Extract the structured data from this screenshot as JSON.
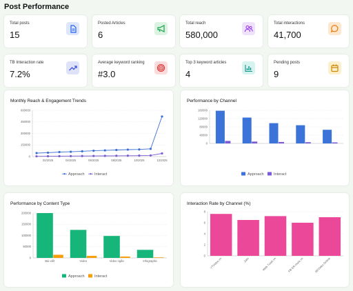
{
  "page_title": "Post Performance",
  "stats": [
    {
      "label": "Total posts",
      "value": "15",
      "icon": "document-icon",
      "color": "#2563eb",
      "bg": "#dde6fb"
    },
    {
      "label": "Posted Articles",
      "value": "6",
      "icon": "megaphone-icon",
      "color": "#16a34a",
      "bg": "#dcf3e3"
    },
    {
      "label": "Total reach",
      "value": "580,000",
      "icon": "users-icon",
      "color": "#9333ea",
      "bg": "#efe1fb"
    },
    {
      "label": "Total interactions",
      "value": "41,700",
      "icon": "chat-bubble-icon",
      "color": "#ea7a0c",
      "bg": "#fde7cf"
    },
    {
      "label": "TB Interaction rate",
      "value": "7.2%",
      "icon": "trend-up-icon",
      "color": "#3f51d8",
      "bg": "#dfe3fa"
    },
    {
      "label": "Average keyword ranking",
      "value": "#3.0",
      "icon": "target-icon",
      "color": "#dc2626",
      "bg": "#fbdcdc"
    },
    {
      "label": "Top 3 keyword articles",
      "value": "4",
      "icon": "bar-chart-icon",
      "color": "#0d9488",
      "bg": "#d6f3ef"
    },
    {
      "label": "Pending posts",
      "value": "9",
      "icon": "calendar-icon",
      "color": "#ca8a04",
      "bg": "#fbefcc"
    }
  ],
  "charts": {
    "reach": {
      "title": "Monthly Reach & Engagement Trends",
      "type": "line",
      "y_ticks": [
        "600000",
        "450000",
        "300000",
        "150000",
        "0"
      ],
      "ylim": [
        0,
        600000
      ],
      "x_labels": [
        "02/2025",
        "04/2025",
        "06/2025",
        "08/2025",
        "10/2025",
        "12/2025"
      ],
      "series": [
        {
          "name": "Approach",
          "color": "#3b6fd6",
          "values": [
            45000,
            50000,
            58000,
            62000,
            68000,
            75000,
            80000,
            85000,
            90000,
            92000,
            100000,
            520000
          ]
        },
        {
          "name": "Interact",
          "color": "#7c5bd6",
          "values": [
            3000,
            4000,
            5000,
            6000,
            7000,
            8000,
            9000,
            10000,
            11000,
            12000,
            14000,
            40000
          ]
        }
      ]
    },
    "channel": {
      "title": "Performance by Channel",
      "type": "bar",
      "y_ticks": [
        "160000",
        "120000",
        "80000",
        "40000",
        "0"
      ],
      "ylim": [
        0,
        160000
      ],
      "series": [
        {
          "name": "Approach",
          "color": "#3b73d9",
          "values": [
            158000,
            125000,
            98000,
            88000,
            66000
          ]
        },
        {
          "name": "Interact",
          "color": "#7c5bd6",
          "values": [
            12000,
            9000,
            7000,
            6000,
            5000
          ]
        }
      ]
    },
    "content": {
      "title": "Performance by Content Type",
      "type": "bar",
      "categories": [
        "Bài viết",
        "Video",
        "Video ngắn",
        "Infographic"
      ],
      "y_ticks": [
        "200000",
        "150000",
        "100000",
        "50000",
        "0"
      ],
      "ylim": [
        0,
        200000
      ],
      "series": [
        {
          "name": "Approach",
          "color": "#16b57a",
          "values": [
            200000,
            125000,
            98000,
            36000
          ]
        },
        {
          "name": "Interact",
          "color": "#f59e0b",
          "values": [
            14000,
            9000,
            6000,
            2500
          ]
        }
      ]
    },
    "rate": {
      "title": "Interaction Rate by Channel (%)",
      "type": "bar",
      "categories": [
        "YTVideo.vn",
        "Zalo",
        "Web Tuiah.vn",
        "FB ER.mark.vn",
        "SEVideo Online"
      ],
      "y_ticks": [
        "8",
        "6",
        "4",
        "2",
        "0"
      ],
      "ylim": [
        0,
        8
      ],
      "color": "#ec4899",
      "values": [
        7.6,
        6.5,
        7.2,
        6.0,
        7.0
      ]
    }
  }
}
